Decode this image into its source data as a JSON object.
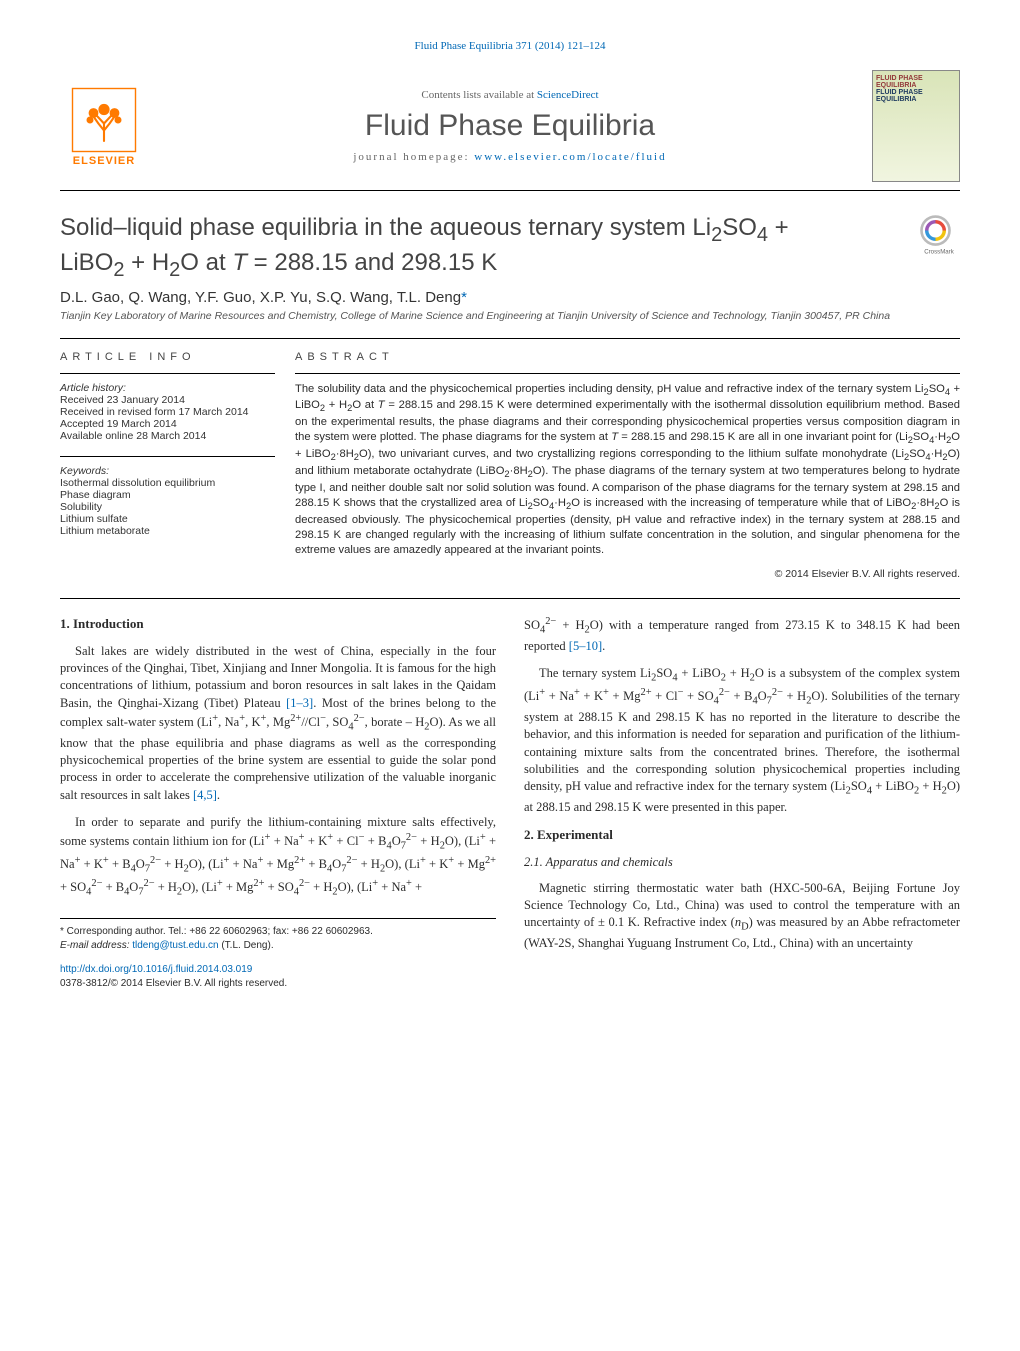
{
  "header_link": "Fluid Phase Equilibria 371 (2014) 121–124",
  "masthead": {
    "contents_text": "Contents lists available at ",
    "contents_link": "ScienceDirect",
    "journal": "Fluid Phase Equilibria",
    "homepage_label": "journal homepage: ",
    "homepage_link": "www.elsevier.com/locate/fluid",
    "elsevier": "ELSEVIER",
    "cover_line1a": "FLUID PHASE",
    "cover_line1b": "EQUILIBRIA",
    "cover_line2a": "FLUID PHASE",
    "cover_line2b": "EQUILIBRIA"
  },
  "title_html": "Solid–liquid phase equilibria in the aqueous ternary system Li<sub>2</sub>SO<sub>4</sub> + LiBO<sub>2</sub> + H<sub>2</sub>O at <i>T</i> = 288.15 and 298.15 K",
  "crossmark_label": "CrossMark",
  "authors_html": "D.L. Gao, Q. Wang, Y.F. Guo, X.P. Yu, S.Q. Wang, T.L. Deng<span class=\"star\">*</span>",
  "affiliation": "Tianjin Key Laboratory of Marine Resources and Chemistry, College of Marine Science and Engineering at Tianjin University of Science and Technology, Tianjin 300457, PR China",
  "article_info": {
    "heading": "ARTICLE INFO",
    "history_label": "Article history:",
    "history": [
      "Received 23 January 2014",
      "Received in revised form 17 March 2014",
      "Accepted 19 March 2014",
      "Available online 28 March 2014"
    ],
    "keywords_label": "Keywords:",
    "keywords": [
      "Isothermal dissolution equilibrium",
      "Phase diagram",
      "Solubility",
      "Lithium sulfate",
      "Lithium metaborate"
    ]
  },
  "abstract": {
    "heading": "ABSTRACT",
    "text_html": "The solubility data and the physicochemical properties including density, pH value and refractive index of the ternary system Li<sub>2</sub>SO<sub>4</sub> + LiBO<sub>2</sub> + H<sub>2</sub>O at <i>T</i> = 288.15 and 298.15 K were determined experimentally with the isothermal dissolution equilibrium method. Based on the experimental results, the phase diagrams and their corresponding physicochemical properties versus composition diagram in the system were plotted. The phase diagrams for the system at <i>T</i> = 288.15 and 298.15 K are all in one invariant point for (Li<sub>2</sub>SO<sub>4</sub>·H<sub>2</sub>O + LiBO<sub>2</sub>·8H<sub>2</sub>O), two univariant curves, and two crystallizing regions corresponding to the lithium sulfate monohydrate (Li<sub>2</sub>SO<sub>4</sub>·H<sub>2</sub>O) and lithium metaborate octahydrate (LiBO<sub>2</sub>·8H<sub>2</sub>O). The phase diagrams of the ternary system at two temperatures belong to hydrate type I, and neither double salt nor solid solution was found. A comparison of the phase diagrams for the ternary system at 298.15 and 288.15 K shows that the crystallized area of Li<sub>2</sub>SO<sub>4</sub>·H<sub>2</sub>O is increased with the increasing of temperature while that of LiBO<sub>2</sub>·8H<sub>2</sub>O is decreased obviously. The physicochemical properties (density, pH value and refractive index) in the ternary system at 288.15 and 298.15 K are changed regularly with the increasing of lithium sulfate concentration in the solution, and singular phenomena for the extreme values are amazedly appeared at the invariant points.",
    "copyright": "© 2014 Elsevier B.V. All rights reserved."
  },
  "body": {
    "sec1_heading": "1. Introduction",
    "sec1_p1_html": "Salt lakes are widely distributed in the west of China, especially in the four provinces of the Qinghai, Tibet, Xinjiang and Inner Mongolia. It is famous for the high concentrations of lithium, potassium and boron resources in salt lakes in the Qaidam Basin, the Qinghai-Xizang (Tibet) Plateau <span class=\"ref\">[1–3]</span>. Most of the brines belong to the complex salt-water system (Li<sup>+</sup>, Na<sup>+</sup>, K<sup>+</sup>, Mg<sup>2+</sup>//Cl<sup>−</sup>, SO<sub>4</sub><sup>2−</sup>, borate – H<sub>2</sub>O). As we all know that the phase equilibria and phase diagrams as well as the corresponding physicochemical properties of the brine system are essential to guide the solar pond process in order to accelerate the comprehensive utilization of the valuable inorganic salt resources in salt lakes <span class=\"ref\">[4,5]</span>.",
    "sec1_p2_html": "In order to separate and purify the lithium-containing mixture salts effectively, some systems contain lithium ion for (Li<sup>+</sup> + Na<sup>+</sup> + K<sup>+</sup> + Cl<sup>−</sup> + B<sub>4</sub>O<sub>7</sub><sup>2−</sup> + H<sub>2</sub>O), (Li<sup>+</sup> + Na<sup>+</sup> + K<sup>+</sup> + B<sub>4</sub>O<sub>7</sub><sup>2−</sup> + H<sub>2</sub>O), (Li<sup>+</sup> + Na<sup>+</sup> + Mg<sup>2+</sup> + B<sub>4</sub>O<sub>7</sub><sup>2−</sup> + H<sub>2</sub>O), (Li<sup>+</sup> + K<sup>+</sup> + Mg<sup>2+</sup> + SO<sub>4</sub><sup>2−</sup> + B<sub>4</sub>O<sub>7</sub><sup>2−</sup> + H<sub>2</sub>O), (Li<sup>+</sup> + Mg<sup>2+</sup> + SO<sub>4</sub><sup>2−</sup> + H<sub>2</sub>O), (Li<sup>+</sup> + Na<sup>+</sup> +",
    "col2_p1_html": "SO<sub>4</sub><sup>2−</sup> + H<sub>2</sub>O) with a temperature ranged from 273.15 K to 348.15 K had been reported <span class=\"ref\">[5–10]</span>.",
    "col2_p2_html": "The ternary system Li<sub>2</sub>SO<sub>4</sub> + LiBO<sub>2</sub> + H<sub>2</sub>O is a subsystem of the complex system (Li<sup>+</sup> + Na<sup>+</sup> + K<sup>+</sup> + Mg<sup>2+</sup> + Cl<sup>−</sup> + SO<sub>4</sub><sup>2−</sup> + B<sub>4</sub>O<sub>7</sub><sup>2−</sup> + H<sub>2</sub>O). Solubilities of the ternary system at 288.15 K and 298.15 K has no reported in the literature to describe the behavior, and this information is needed for separation and purification of the lithium-containing mixture salts from the concentrated brines. Therefore, the isothermal solubilities and the corresponding solution physicochemical properties including density, pH value and refractive index for the ternary system (Li<sub>2</sub>SO<sub>4</sub> + LiBO<sub>2</sub> + H<sub>2</sub>O) at 288.15 and 298.15 K were presented in this paper.",
    "sec2_heading": "2. Experimental",
    "sec21_heading": "2.1. Apparatus and chemicals",
    "sec21_p1_html": "Magnetic stirring thermostatic water bath (HXC-500-6A, Beijing Fortune Joy Science Technology Co, Ltd., China) was used to control the temperature with an uncertainty of ± 0.1 K. Refractive index (<i>n</i><sub>D</sub>) was measured by an Abbe refractometer (WAY-2S, Shanghai Yuguang Instrument Co, Ltd., China) with an uncertainty"
  },
  "footnotes": {
    "corr": "* Corresponding author. Tel.: +86 22 60602963; fax: +86 22 60602963.",
    "email_label": "E-mail address: ",
    "email": "tldeng@tust.edu.cn",
    "email_who": " (T.L. Deng)."
  },
  "footer": {
    "doi": "http://dx.doi.org/10.1016/j.fluid.2014.03.019",
    "issn": "0378-3812/© 2014 Elsevier B.V. All rights reserved."
  },
  "colors": {
    "link": "#0068b5",
    "orange": "#ff7a00",
    "text": "#2b2b2b"
  }
}
